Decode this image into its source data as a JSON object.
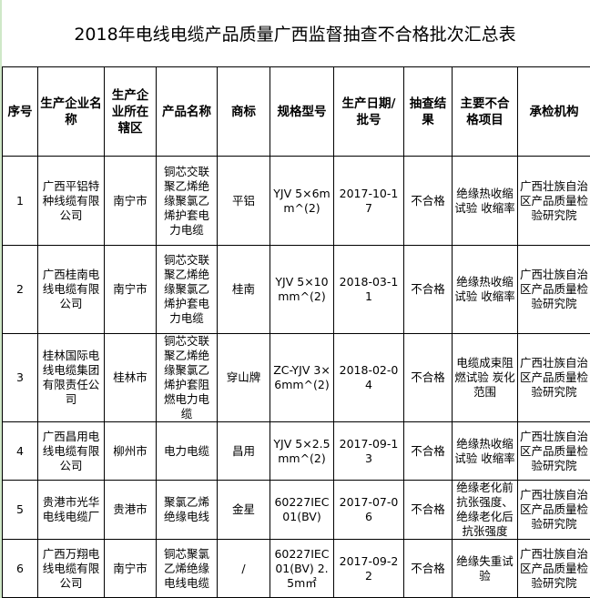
{
  "title": "2018年电线电缆产品质量广西监督抽查不合格批次汇总表",
  "headers": [
    "序号",
    "生产企业名称",
    "生产企业所在辖区",
    "产品名称",
    "商标",
    "规格型号",
    "生产日期/批号",
    "抽查结果",
    "主要不合格项目",
    "承检机构"
  ],
  "rows": [
    [
      "1",
      "广西平铝特种线缆有限公司",
      "南宁市",
      "铜芯交联聚乙烯绝缘聚氯乙烯护套电力电缆",
      "平铝",
      "YJV 5×6mm^(2)",
      "2017-10-17",
      "不合格",
      "绝缘热收缩试验 收缩率",
      "广西壮族自治区产品质量检验研究院"
    ],
    [
      "2",
      "广西桂南电线电缆有限公司",
      "南宁市",
      "铜芯交联聚乙烯绝缘聚氯乙烯护套电力电缆",
      "桂南",
      "YJV 5×10mm^(2)",
      "2018-03-11",
      "不合格",
      "绝缘热收缩试验 收缩率",
      "广西壮族自治区产品质量检验研究院"
    ],
    [
      "3",
      "桂林国际电线电缆集团有限责任公司",
      "桂林市",
      "铜芯交联聚乙烯绝缘聚氯乙烯护套阻燃电力电缆",
      "穿山牌",
      "ZC-YJV 3×6mm^(2)",
      "2018-02-04",
      "不合格",
      "电缆成束阻燃试验 炭化范围",
      "广西壮族自治区产品质量检验研究院"
    ],
    [
      "4",
      "广西昌用电线电缆有限公司",
      "柳州市",
      "电力电缆",
      "昌用",
      "YJV 5×2.5mm^(2)",
      "2017-09-13",
      "不合格",
      "绝缘热收缩试验 收缩率",
      "广西壮族自治区产品质量检验研究院"
    ],
    [
      "5",
      "贵港市光华电线电缆厂",
      "贵港市",
      "聚氯乙烯绝缘电线",
      "金星",
      "60227IEC01(BV)",
      "2017-07-06",
      "不合格",
      "绝缘老化前抗张强度、绝缘老化后抗张强度",
      "广西壮族自治区产品质量检验研究院"
    ],
    [
      "6",
      "广西万翔电线电缆有限公司",
      "南宁市",
      "铜芯聚氯乙烯绝缘电线电缆",
      "/",
      "60227IEC01(BV) 2.5m㎡",
      "2017-09-22",
      "不合格",
      "绝缘失重试验",
      "广西壮族自治区产品质量检验研究院"
    ]
  ]
}
